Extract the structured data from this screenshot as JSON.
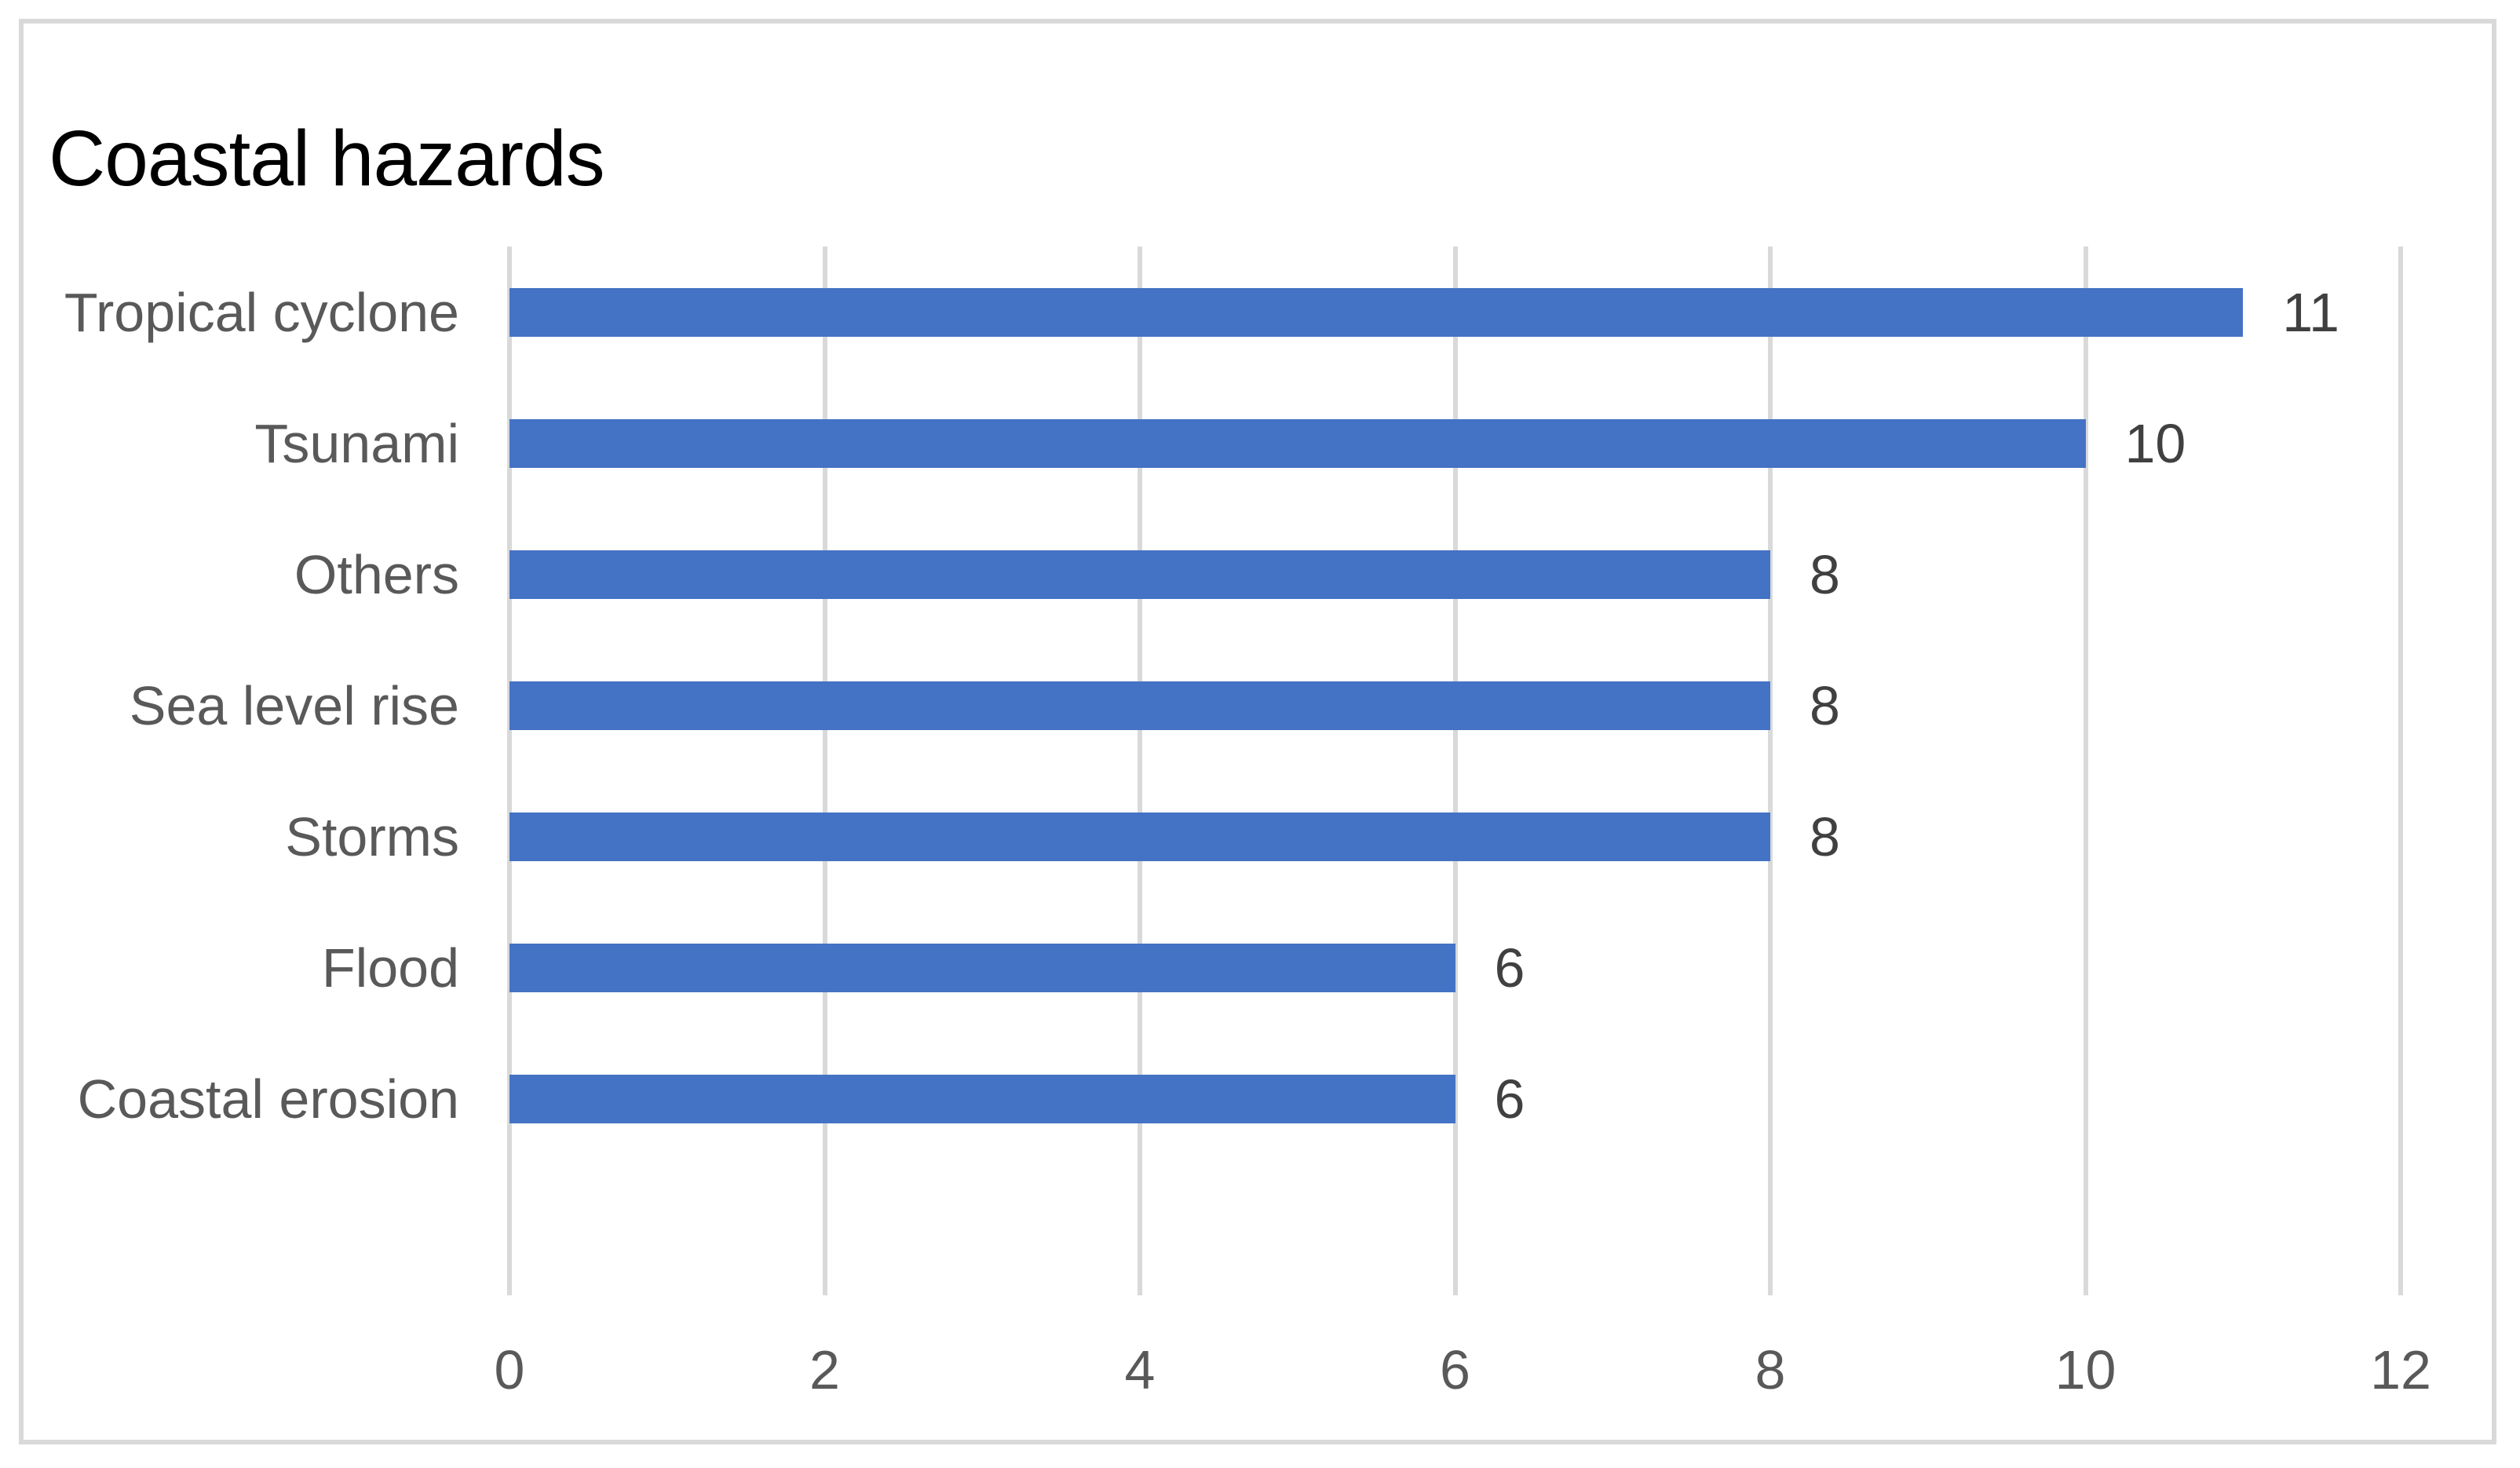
{
  "chart_data": {
    "type": "bar",
    "orientation": "horizontal",
    "title": "Coastal hazards",
    "categories": [
      "Tropical cyclone",
      "Tsunami",
      "Others",
      "Sea level rise",
      "Storms",
      "Flood",
      "Coastal erosion"
    ],
    "values": [
      11,
      10,
      8,
      8,
      8,
      6,
      6
    ],
    "data_labels": [
      "11",
      "10",
      "8",
      "8",
      "8",
      "6",
      "6"
    ],
    "xlabel": "",
    "ylabel": "",
    "xlim": [
      0,
      12
    ],
    "xticks": [
      "0",
      "2",
      "4",
      "6",
      "8",
      "10",
      "12"
    ],
    "grid": "vertical-on",
    "legend": "none",
    "row_slots": 8,
    "colors": {
      "bar": "#4472c4",
      "gridline": "#d9d9d9",
      "frame_border": "#d9d9d9",
      "title_text": "#000000",
      "category_text": "#595959",
      "tick_text": "#595959",
      "value_text": "#404040",
      "background": "#ffffff"
    }
  }
}
